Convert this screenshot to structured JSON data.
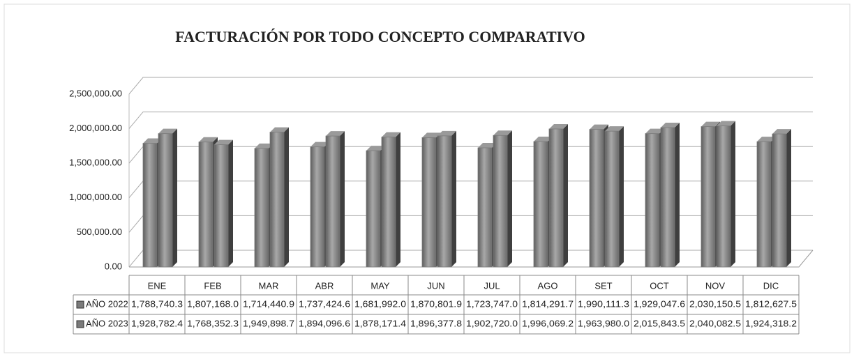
{
  "chart_data": {
    "type": "bar",
    "title": "FACTURACIÓN POR TODO CONCEPTO COMPARATIVO",
    "categories": [
      "ENE",
      "FEB",
      "MAR",
      "ABR",
      "MAY",
      "JUN",
      "JUL",
      "AGO",
      "SET",
      "OCT",
      "NOV",
      "DIC"
    ],
    "series": [
      {
        "name": "AÑO 2022",
        "color": "#7a7a7a",
        "values": [
          1788740.3,
          1807168.0,
          1714440.9,
          1737424.6,
          1681992.0,
          1870801.9,
          1723747.0,
          1814291.7,
          1990111.3,
          1929047.6,
          2030150.5,
          1812627.5
        ],
        "value_labels": [
          "1,788,740.3",
          "1,807,168.0",
          "1,714,440.9",
          "1,737,424.6",
          "1,681,992.0",
          "1,870,801.9",
          "1,723,747.0",
          "1,814,291.7",
          "1,990,111.3",
          "1,929,047.6",
          "2,030,150.5",
          "1,812,627.5"
        ]
      },
      {
        "name": "AÑO 2023",
        "color": "#7a7a7a",
        "values": [
          1928782.4,
          1768352.3,
          1949898.7,
          1894096.6,
          1878171.4,
          1896377.8,
          1902720.0,
          1996069.2,
          1963980.0,
          2015843.5,
          2040082.5,
          1924318.2
        ],
        "value_labels": [
          "1,928,782.4",
          "1,768,352.3",
          "1,949,898.7",
          "1,894,096.6",
          "1,878,171.4",
          "1,896,377.8",
          "1,902,720.0",
          "1,996,069.2",
          "1,963,980.0",
          "2,015,843.5",
          "2,040,082.5",
          "1,924,318.2"
        ]
      }
    ],
    "ylim": [
      0,
      2500000
    ],
    "yticks": [
      {
        "value": 0,
        "label": "0.00"
      },
      {
        "value": 500000,
        "label": "500,000.00"
      },
      {
        "value": 1000000,
        "label": "1,000,000.00"
      },
      {
        "value": 1500000,
        "label": "1,500,000.00"
      },
      {
        "value": 2000000,
        "label": "2,000,000.00"
      },
      {
        "value": 2500000,
        "label": "2,500,000.00"
      }
    ],
    "grid": true
  }
}
